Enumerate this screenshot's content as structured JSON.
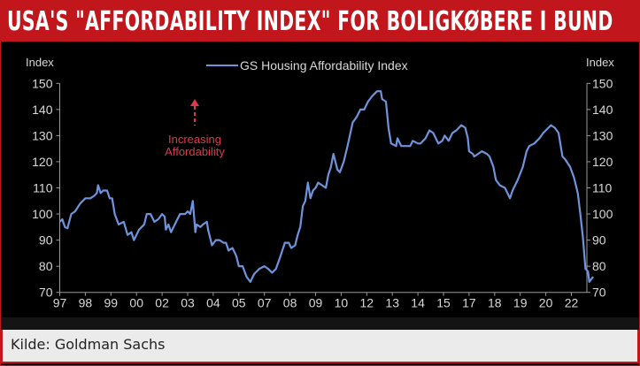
{
  "header": {
    "title": "USA'S \"AFFORDABILITY INDEX\" FOR BOLIGKØBERE I BUND"
  },
  "footer": {
    "source": "Kilde: Goldman Sachs"
  },
  "colors": {
    "brand_red": "#c1161b",
    "line": "#6f94dc",
    "annotation": "#e0374a",
    "text": "#d8d8d8"
  },
  "chart_data": {
    "type": "line",
    "title": "",
    "ylabel_left": "Index",
    "ylabel_right": "Index",
    "ylim": [
      70,
      150
    ],
    "yticks": [
      70,
      80,
      90,
      100,
      110,
      120,
      130,
      140,
      150
    ],
    "xticks": [
      "97",
      "98",
      "99",
      "00",
      "02",
      "03",
      "04",
      "05",
      "07",
      "08",
      "09",
      "10",
      "12",
      "13",
      "14",
      "15",
      "17",
      "18",
      "19",
      "20",
      "22"
    ],
    "legend": {
      "label": "GS Housing Affordability Index",
      "placement": "top-center"
    },
    "annotation": {
      "line1": "Increasing",
      "line2": "Affordability"
    },
    "grid": false,
    "series": [
      {
        "name": "GS Housing Affordability Index",
        "x_tick_index": [
          0,
          0.1,
          0.2,
          0.3,
          0.45,
          0.6,
          0.8,
          1.0,
          1.2,
          1.35,
          1.45,
          1.5,
          1.6,
          1.7,
          1.85,
          1.95,
          2.05,
          2.15,
          2.3,
          2.5,
          2.65,
          2.8,
          2.9,
          3.0,
          3.1,
          3.2,
          3.3,
          3.4,
          3.55,
          3.7,
          3.85,
          4.0,
          4.1,
          4.15,
          4.25,
          4.35,
          4.5,
          4.7,
          4.9,
          5.0,
          5.1,
          5.2,
          5.3,
          5.35,
          5.5,
          5.6,
          5.75,
          5.8,
          5.95,
          6.1,
          6.25,
          6.4,
          6.5,
          6.6,
          6.75,
          6.9,
          7.0,
          7.15,
          7.3,
          7.45,
          7.6,
          7.8,
          8.0,
          8.15,
          8.3,
          8.45,
          8.6,
          8.8,
          8.95,
          9.05,
          9.2,
          9.3,
          9.4,
          9.5,
          9.6,
          9.7,
          9.8,
          9.9,
          10.0,
          10.1,
          10.25,
          10.4,
          10.5,
          10.6,
          10.7,
          10.85,
          10.95,
          11.1,
          11.25,
          11.45,
          11.6,
          11.75,
          11.9,
          12.05,
          12.2,
          12.4,
          12.55,
          12.6,
          12.75,
          12.85,
          12.95,
          13.15,
          13.2,
          13.35,
          13.55,
          13.7,
          13.8,
          14.0,
          14.1,
          14.3,
          14.45,
          14.6,
          14.8,
          14.95,
          15.05,
          15.2,
          15.35,
          15.5,
          15.7,
          15.85,
          15.95,
          16.0,
          16.15,
          16.2,
          16.35,
          16.5,
          16.7,
          16.8,
          16.95,
          17.05,
          17.2,
          17.4,
          17.5,
          17.6,
          17.7,
          17.9,
          18.1,
          18.25,
          18.35,
          18.55,
          18.75,
          18.9,
          19.0,
          19.2,
          19.35,
          19.5,
          19.65,
          19.75,
          19.95,
          20.1,
          20.25,
          20.35,
          20.45,
          20.55,
          20.65,
          20.7,
          20.85
        ],
        "values": [
          97,
          98,
          95,
          94.5,
          100,
          101,
          104,
          106,
          106,
          107,
          108,
          111,
          108,
          109,
          109,
          106,
          106,
          100,
          96,
          97,
          92,
          93,
          90,
          92,
          94,
          95,
          96,
          100,
          100,
          97,
          98,
          100,
          99,
          94,
          96,
          93,
          96,
          100,
          100,
          101,
          100,
          105,
          93,
          96,
          95,
          96,
          97,
          94,
          88,
          90,
          90,
          89,
          89,
          86,
          87,
          84,
          80,
          80,
          76,
          74,
          77,
          79,
          80,
          79,
          77.5,
          79,
          83,
          89,
          89,
          87,
          88,
          92,
          95,
          103,
          105,
          112,
          106,
          109,
          110,
          112,
          111,
          110,
          115,
          118,
          123,
          117,
          116,
          120,
          126,
          135,
          137,
          140,
          140,
          143,
          145,
          147,
          147,
          144,
          143,
          133,
          127,
          126,
          129,
          126,
          126,
          126,
          128,
          127,
          127,
          129,
          132,
          131,
          127,
          128,
          130,
          128,
          131,
          132,
          134,
          133,
          129,
          124,
          123,
          122,
          123,
          124,
          123,
          122,
          118,
          113,
          111,
          110,
          108,
          106,
          109,
          113,
          118,
          124,
          126,
          127,
          129,
          131,
          132,
          134,
          133,
          131,
          122,
          121,
          118,
          114,
          108,
          100,
          91,
          79,
          78,
          74,
          76
        ]
      }
    ]
  }
}
